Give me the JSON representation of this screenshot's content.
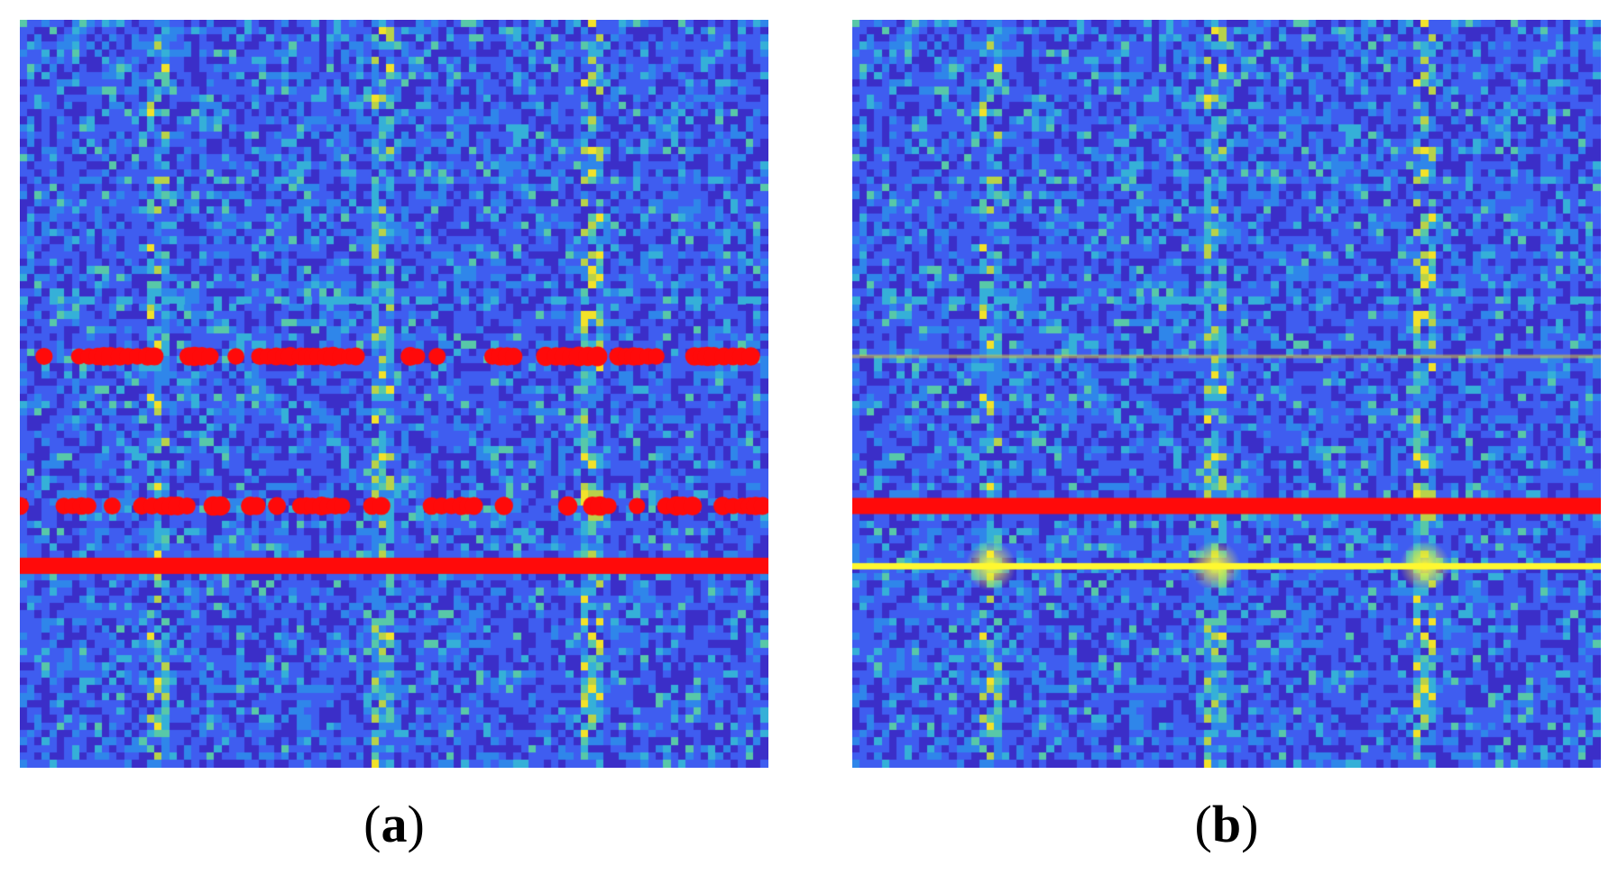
{
  "panels": [
    {
      "id": "a",
      "caption_open": "(",
      "caption_letter": "a",
      "caption_close": ")",
      "background_colors": [
        "#3b2ec8",
        "#3f5df0",
        "#2f86ea",
        "#35b0d8",
        "#58c8a8",
        "#b8d24a",
        "#f2e22a"
      ],
      "vertical_bright_columns": [
        0.18,
        0.48,
        0.76
      ],
      "highlight_rows": [
        {
          "row": 0.45,
          "color": "#ff0a0a",
          "style": "dotted-segments"
        },
        {
          "row": 0.65,
          "color": "#ff0a0a",
          "style": "dotted-segments"
        },
        {
          "row": 0.73,
          "color": "#ff0a0a",
          "style": "solid"
        }
      ]
    },
    {
      "id": "b",
      "caption_open": "(",
      "caption_letter": "b",
      "caption_close": ")",
      "background_colors": [
        "#3b2ec8",
        "#3f5df0",
        "#2f86ea",
        "#35b0d8",
        "#58c8a8",
        "#b8d24a",
        "#f2e22a"
      ],
      "vertical_bright_columns": [
        0.18,
        0.48,
        0.76
      ],
      "highlight_rows": [
        {
          "row": 0.45,
          "color": "#d8c53a",
          "style": "faint"
        },
        {
          "row": 0.65,
          "color": "#ff0a0a",
          "style": "solid"
        },
        {
          "row": 0.73,
          "color": "#fff830",
          "style": "solid-bright"
        }
      ]
    }
  ]
}
